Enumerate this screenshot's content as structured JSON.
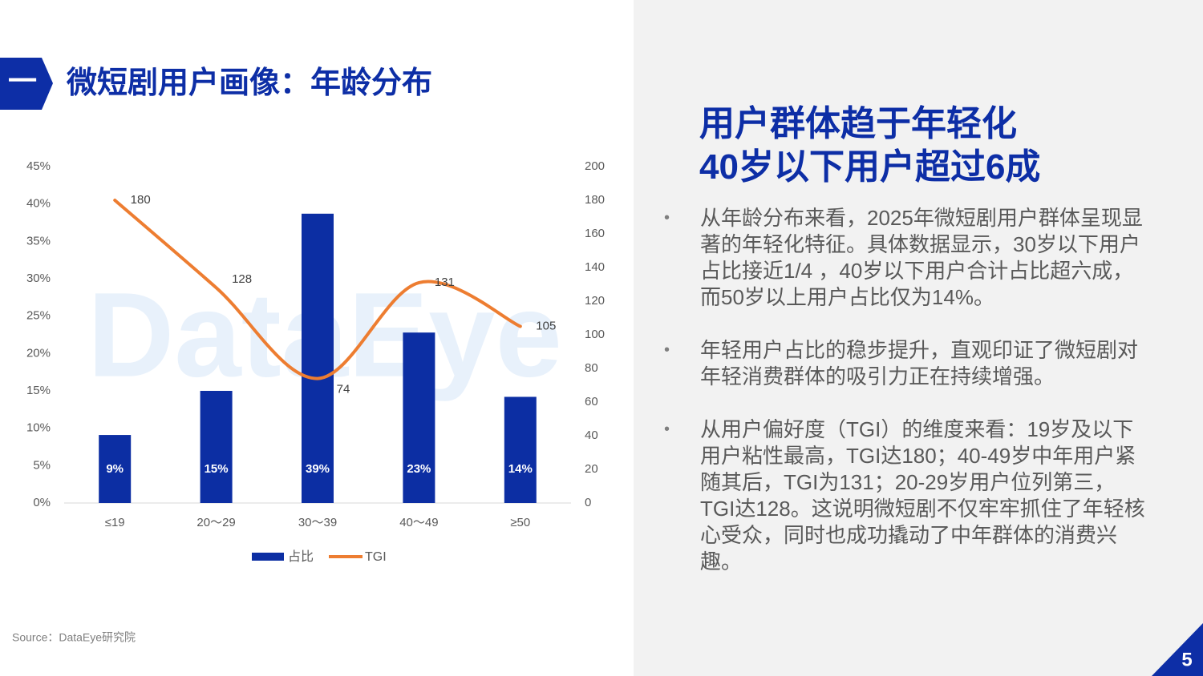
{
  "header": {
    "section": "一",
    "title": "微短剧用户画像：年龄分布"
  },
  "chart_data": {
    "type": "bar_line",
    "watermark": "DataEye",
    "categories": [
      "≤19",
      "20～29",
      "30～39",
      "40～49",
      "≥50"
    ],
    "series": [
      {
        "name": "占比",
        "type": "bar",
        "color": "#0c2ea3",
        "values": [
          9.1,
          15,
          38.7,
          22.8,
          14.2
        ],
        "value_labels": [
          "9%",
          "15%",
          "39%",
          "23%",
          "14%"
        ]
      },
      {
        "name": "TGI",
        "type": "line",
        "color": "#ed7d31",
        "axis": "y2",
        "values": [
          180,
          128,
          74,
          131,
          105
        ]
      }
    ],
    "ylim": [
      0,
      45
    ],
    "yticks": [
      {
        "value": 0,
        "label": "0%"
      },
      {
        "value": 5,
        "label": "5%"
      },
      {
        "value": 10,
        "label": "10%"
      },
      {
        "value": 15,
        "label": "15%"
      },
      {
        "value": 20,
        "label": "20%"
      },
      {
        "value": 25,
        "label": "25%"
      },
      {
        "value": 30,
        "label": "30%"
      },
      {
        "value": 35,
        "label": "35%"
      },
      {
        "value": 40,
        "label": "40%"
      },
      {
        "value": 45,
        "label": "45%"
      }
    ],
    "y2lim": [
      0,
      200
    ],
    "y2ticks": [
      0,
      20,
      40,
      60,
      80,
      100,
      120,
      140,
      160,
      180,
      200
    ],
    "grid": false,
    "legend": "bottom"
  },
  "source": "Source：DataEye研究院",
  "panel": {
    "headline": [
      "用户群体趋于年轻化",
      "40岁以下用户超过6成"
    ],
    "bullets": [
      "从年龄分布来看，2025年微短剧用户群体呈现显著的年轻化特征。具体数据显示，30岁以下用户占比接近1/4 ，40岁以下用户合计占比超六成，而50岁以上用户占比仅为14%。",
      "年轻用户占比的稳步提升，直观印证了微短剧对年轻消费群体的吸引力正在持续增强。",
      "从用户偏好度（TGI）的维度来看：19岁及以下用户粘性最高，TGI达180；40-49岁中年用户紧随其后，TGI为131；20-29岁用户位列第三，TGI达128。这说明微短剧不仅牢牢抓住了年轻核心受众，同时也成功撬动了中年群体的消费兴趣。"
    ]
  },
  "page_number": "5"
}
